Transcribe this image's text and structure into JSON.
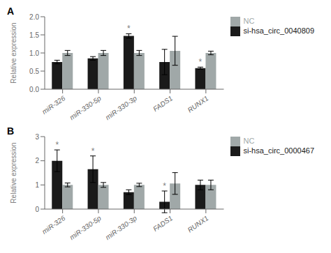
{
  "chart_data": [
    {
      "type": "bar",
      "title": "A",
      "y_label": "Relative expression",
      "categories": [
        "miR-326",
        "miR-330-5p",
        "miR-330-3p",
        "FADS1",
        "RUNX1"
      ],
      "series": [
        {
          "name": "si-hsa_circ_0040809",
          "color": "#1a1a1a",
          "values": [
            0.75,
            0.85,
            1.47,
            0.75,
            0.58
          ],
          "errors": [
            0.05,
            0.05,
            0.06,
            0.35,
            0.03
          ]
        },
        {
          "name": "NC",
          "color": "#a0a8a8",
          "values": [
            1.0,
            1.0,
            1.0,
            1.06,
            1.0
          ],
          "errors": [
            0.07,
            0.07,
            0.07,
            0.4,
            0.05
          ]
        }
      ],
      "annotations": [
        {
          "text": "*",
          "category": "miR-330-3p",
          "series": "si-hsa_circ_0040809"
        },
        {
          "text": "*",
          "category": "RUNX1",
          "series": "si-hsa_circ_0040809"
        }
      ],
      "ylim": [
        0,
        2.0
      ],
      "yticks": [
        {
          "value": 0,
          "label": "0.0"
        },
        0.5,
        {
          "value": 1,
          "label": "1.0"
        },
        1.5,
        {
          "value": 2,
          "label": "2.0"
        }
      ],
      "legend": "right"
    },
    {
      "type": "bar",
      "title": "B",
      "y_label": "Relative expression",
      "categories": [
        "miR-326",
        "miR-330-5p",
        "miR-330-3p",
        "FADS1",
        "RUNX1"
      ],
      "series": [
        {
          "name": "si-hsa_circ_0000467",
          "color": "#1a1a1a",
          "values": [
            2.0,
            1.65,
            0.7,
            0.3,
            1.0
          ],
          "errors": [
            0.45,
            0.55,
            0.1,
            0.45,
            0.2
          ]
        },
        {
          "name": "NC",
          "color": "#a0a8a8",
          "values": [
            1.0,
            1.0,
            1.0,
            1.06,
            1.0
          ],
          "errors": [
            0.08,
            0.1,
            0.07,
            0.45,
            0.2
          ]
        }
      ],
      "annotations": [
        {
          "text": "*",
          "category": "miR-326",
          "series": "si-hsa_circ_0000467"
        },
        {
          "text": "*",
          "category": "miR-330-5p",
          "series": "si-hsa_circ_0000467"
        },
        {
          "text": "*",
          "category": "FADS1",
          "series": "si-hsa_circ_0000467"
        }
      ],
      "ylim": [
        0,
        3.0
      ],
      "yticks": [
        0,
        1,
        2,
        3
      ],
      "legend": "right"
    }
  ]
}
